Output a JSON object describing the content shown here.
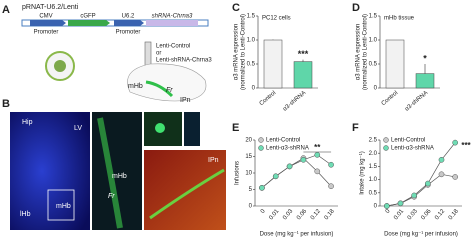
{
  "panel_labels": [
    "A",
    "B",
    "C",
    "D",
    "E",
    "F"
  ],
  "diagram": {
    "vector_title": "pRNAT-U6.2/Lenti",
    "elements": [
      "CMV",
      "cGFP",
      "U6.2",
      "shRNA-Chrna3"
    ],
    "promoter_labels": [
      "Promoter",
      "Promoter"
    ],
    "injection_labels": [
      "Lenti-Control",
      "or",
      "Lenti-shRNA-Chrna3"
    ],
    "brain_labels": [
      "mHb",
      "Fr",
      "IPn"
    ]
  },
  "histology": {
    "labels": [
      "Hip",
      "LV",
      "lHb",
      "mHb",
      "mHb",
      "Fr",
      "IPn"
    ]
  },
  "chart_data": [
    {
      "type": "bar",
      "y_label": [
        "α3 mRNA expression",
        "(normalized to Lenti-Control)"
      ],
      "annotation": "PC12 cells",
      "significance": "***",
      "categories": [
        "Control",
        "α3-shRNA"
      ],
      "values": [
        1,
        0.55
      ],
      "errors": [
        0.01,
        0.04
      ],
      "colors": [
        "#f2f2f2",
        "#5fd6a9"
      ],
      "ylim": [
        0,
        1.5
      ],
      "yticks": [
        0,
        0.5,
        {
          "value": 1,
          "label": "1.0"
        },
        1.5
      ]
    },
    {
      "type": "bar",
      "y_label": [
        "α3 mRNA expression",
        "(normalized to Lenti-Control)"
      ],
      "annotation": "mHb tissue",
      "significance": "*",
      "categories": [
        "Control",
        "α3-shRNA"
      ],
      "values": [
        1,
        0.3
      ],
      "errors": [
        0,
        0.2
      ],
      "colors": [
        "#f2f2f2",
        "#5fd6a9"
      ],
      "ylim": [
        0,
        1.5
      ],
      "yticks": [
        0,
        0.5,
        {
          "value": 1,
          "label": "1.0"
        },
        1.5
      ]
    },
    {
      "type": "line",
      "y_label": [
        "Infusions"
      ],
      "x_label": "Dose (mg kg⁻¹ per infusion)",
      "significance": "**",
      "categories": [
        "0",
        "0.01",
        "0.03",
        "0.06",
        "0.12",
        "0.18"
      ],
      "series": [
        {
          "name": "Lenti-Control",
          "color": "#c8c8c8",
          "values": [
            5.5,
            9,
            12,
            14.5,
            10.5,
            6
          ]
        },
        {
          "name": "Lenti-α3-shRNA",
          "color": "#6fdcb4",
          "values": [
            5.5,
            9,
            12,
            14,
            15.5,
            12.5
          ]
        }
      ],
      "ylim": [
        0,
        20
      ],
      "yticks": [
        0,
        5,
        10,
        15,
        20
      ]
    },
    {
      "type": "line",
      "y_label": [
        "Intake (mg kg⁻¹)"
      ],
      "x_label": "Dose (mg kg⁻¹ per infusion)",
      "significance": "***",
      "categories": [
        "0",
        "0.01",
        "0.03",
        "0.06",
        "0.12",
        "0.18"
      ],
      "series": [
        {
          "name": "Lenti-Control",
          "color": "#c8c8c8",
          "values": [
            0,
            0.1,
            0.35,
            0.8,
            1.2,
            1.1
          ]
        },
        {
          "name": "Lenti-α3-shRNA",
          "color": "#6fdcb4",
          "values": [
            0,
            0.1,
            0.4,
            0.85,
            1.75,
            2.4
          ]
        }
      ],
      "ylim": [
        0,
        2.5
      ],
      "yticks": [
        0,
        0.5,
        {
          "value": 1,
          "label": "1.0"
        },
        1.5,
        {
          "value": 2,
          "label": "2.0"
        },
        2.5
      ]
    }
  ]
}
